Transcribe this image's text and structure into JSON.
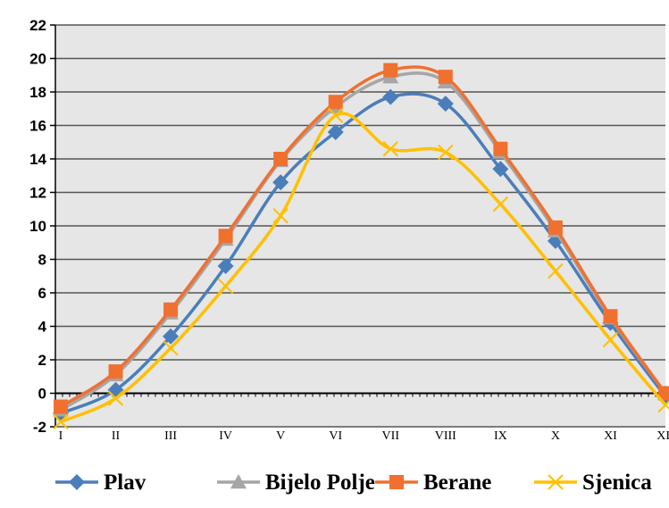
{
  "chart_data": {
    "type": "line",
    "title": "",
    "xlabel": "",
    "ylabel": "",
    "categories": [
      "I",
      "II",
      "III",
      "IV",
      "V",
      "VI",
      "VII",
      "VIII",
      "IX",
      "X",
      "XI",
      "XII"
    ],
    "ylim": [
      -2,
      22
    ],
    "yticks": [
      -2,
      0,
      2,
      4,
      6,
      8,
      10,
      12,
      14,
      16,
      18,
      20,
      22
    ],
    "grid": true,
    "legend_position": "bottom",
    "plot_background": "#e6e6e6",
    "series": [
      {
        "name": "Plav",
        "color": "#4a7ebb",
        "marker": "diamond",
        "values": [
          -1.2,
          0.2,
          3.4,
          7.6,
          12.6,
          15.6,
          17.7,
          17.3,
          13.4,
          9.1,
          4.2,
          -0.2
        ]
      },
      {
        "name": "Bijelo Polje",
        "color": "#a6a6a6",
        "marker": "triangle",
        "values": [
          -1.0,
          1.1,
          4.8,
          9.2,
          13.9,
          17.1,
          18.9,
          18.6,
          14.4,
          9.7,
          4.5,
          0.0
        ]
      },
      {
        "name": "Berane",
        "color": "#f07030",
        "marker": "square",
        "values": [
          -0.8,
          1.3,
          5.0,
          9.4,
          14.0,
          17.4,
          19.3,
          18.9,
          14.6,
          9.9,
          4.6,
          0.0
        ]
      },
      {
        "name": "Sjenica",
        "color": "#ffc000",
        "marker": "x",
        "values": [
          -1.7,
          -0.3,
          2.7,
          6.4,
          10.6,
          16.6,
          14.6,
          14.4,
          11.3,
          7.3,
          3.2,
          -0.7
        ]
      }
    ]
  }
}
